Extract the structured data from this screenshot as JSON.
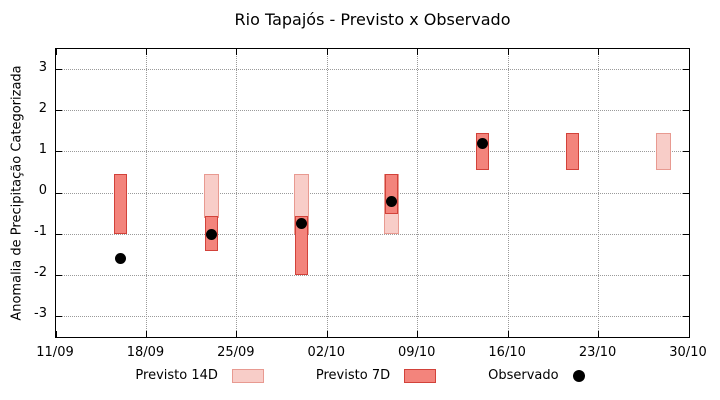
{
  "chart_data": {
    "type": "bar",
    "title": "Rio Tapajós - Previsto x Observado",
    "ylabel": "Anomalia de Precipitação Categorizada",
    "ylim": [
      -3.5,
      3.5
    ],
    "yticks": [
      -3,
      -2,
      -1,
      0,
      1,
      2,
      3
    ],
    "days_total": 49,
    "grid": true,
    "legend_position": "bottom",
    "xticks": [
      {
        "day": 0,
        "label": "11/09"
      },
      {
        "day": 7,
        "label": "18/09"
      },
      {
        "day": 14,
        "label": "25/09"
      },
      {
        "day": 21,
        "label": "02/10"
      },
      {
        "day": 28,
        "label": "09/10"
      },
      {
        "day": 35,
        "label": "16/10"
      },
      {
        "day": 42,
        "label": "23/10"
      },
      {
        "day": 49,
        "label": "30/10"
      }
    ],
    "series_styles": {
      "previsto14": {
        "label": "Previsto 14D",
        "fill": "#f8cdc8",
        "border": "#e89a91"
      },
      "previsto7": {
        "label": "Previsto 7D",
        "fill": "#f3847c",
        "border": "#d2423a"
      },
      "observado": {
        "label": "Observado",
        "color": "#000000"
      }
    },
    "legend_order": [
      "previsto14",
      "previsto7",
      "observado"
    ],
    "bars": [
      {
        "day": 5,
        "date": "16/09",
        "previsto14": null,
        "previsto7": [
          -1.0,
          0.45
        ],
        "observado": -1.6
      },
      {
        "day": 12,
        "date": "23/09",
        "previsto14": [
          -0.6,
          0.45
        ],
        "previsto7": [
          -1.4,
          -0.55
        ],
        "observado": -1.0
      },
      {
        "day": 19,
        "date": "30/09",
        "previsto14": [
          -1.0,
          0.45
        ],
        "previsto7": [
          -2.0,
          -0.55
        ],
        "observado": -0.75
      },
      {
        "day": 26,
        "date": "07/10",
        "previsto14": [
          -1.0,
          0.45
        ],
        "previsto7": [
          -0.5,
          0.45
        ],
        "observado": -0.2
      },
      {
        "day": 33,
        "date": "14/10",
        "previsto14": null,
        "previsto7": [
          0.55,
          1.45
        ],
        "observado": 1.2
      },
      {
        "day": 40,
        "date": "21/10",
        "previsto14": null,
        "previsto7": [
          0.55,
          1.45
        ],
        "observado": null
      },
      {
        "day": 47,
        "date": "28/10",
        "previsto14": [
          0.55,
          1.45
        ],
        "previsto7": null,
        "observado": null
      }
    ]
  }
}
